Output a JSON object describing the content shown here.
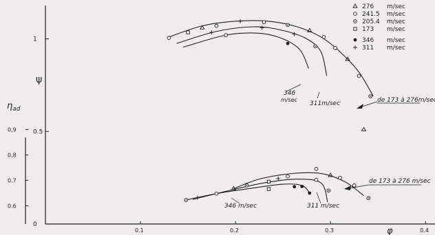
{
  "chart_data": {
    "type": "scatter",
    "title": "",
    "xlabel": "φ",
    "ylabel_psi": "ψ",
    "ylabel_eta": "η_ad",
    "xlim": [
      0,
      0.41
    ],
    "ylim": [
      0,
      1.18
    ],
    "x_ticks": [
      {
        "value": 0.1,
        "label": "0.1"
      },
      {
        "value": 0.2,
        "label": "0.2"
      },
      {
        "value": 0.3,
        "label": "0.3"
      },
      {
        "value": 0.4,
        "label": "0.4"
      }
    ],
    "y_ticks_psi": [
      {
        "value": 0,
        "label": "0"
      },
      {
        "value": 0.5,
        "label": "0.5"
      },
      {
        "value": 1.0,
        "label": "1"
      }
    ],
    "y_ticks_eta": [
      {
        "value": 0.6,
        "label": "0.6"
      },
      {
        "value": 0.7,
        "label": "0.7"
      },
      {
        "value": 0.8,
        "label": "0,8"
      },
      {
        "value": 0.9,
        "label": "0,9"
      }
    ],
    "legend": [
      {
        "marker": "triangle",
        "speed": "276",
        "unit": "m/sec"
      },
      {
        "marker": "circle",
        "speed": "241.5",
        "unit": "m/sec"
      },
      {
        "marker": "dotcircle",
        "speed": "205.4",
        "unit": "m/sec"
      },
      {
        "marker": "square",
        "speed": "173",
        "unit": "m/sec"
      },
      {
        "marker": "filled",
        "speed": "346",
        "unit": "m/sec"
      },
      {
        "marker": "plus",
        "speed": "311",
        "unit": "m/sec"
      }
    ],
    "series": [
      {
        "name": "ψ 173 à 276 m/sec",
        "curve": [
          [
            0.13,
            1.01
          ],
          [
            0.165,
            1.07
          ],
          [
            0.2,
            1.095
          ],
          [
            0.235,
            1.095
          ],
          [
            0.265,
            1.065
          ],
          [
            0.29,
            1.01
          ],
          [
            0.31,
            0.93
          ],
          [
            0.33,
            0.82
          ],
          [
            0.345,
            0.69
          ]
        ],
        "points": [
          {
            "m": "circle",
            "x": 0.13,
            "y": 1.005
          },
          {
            "m": "square",
            "x": 0.15,
            "y": 1.035
          },
          {
            "m": "triangle",
            "x": 0.165,
            "y": 1.06
          },
          {
            "m": "circle",
            "x": 0.18,
            "y": 1.07
          },
          {
            "m": "plus",
            "x": 0.205,
            "y": 1.095
          },
          {
            "m": "circle",
            "x": 0.23,
            "y": 1.09
          },
          {
            "m": "dotcircle",
            "x": 0.255,
            "y": 1.075
          },
          {
            "m": "triangle",
            "x": 0.278,
            "y": 1.045
          },
          {
            "m": "circle",
            "x": 0.293,
            "y": 1.01
          },
          {
            "m": "circle",
            "x": 0.305,
            "y": 0.95
          },
          {
            "m": "triangle",
            "x": 0.318,
            "y": 0.89
          },
          {
            "m": "circle",
            "x": 0.33,
            "y": 0.8
          },
          {
            "m": "dotcircle",
            "x": 0.342,
            "y": 0.69
          },
          {
            "m": "triangle",
            "x": 0.335,
            "y": 0.51
          }
        ]
      },
      {
        "name": "ψ 311 m/sec",
        "curve": [
          [
            0.138,
            0.975
          ],
          [
            0.18,
            1.04
          ],
          [
            0.22,
            1.065
          ],
          [
            0.25,
            1.045
          ],
          [
            0.275,
            1.0
          ],
          [
            0.29,
            0.93
          ],
          [
            0.296,
            0.8
          ]
        ],
        "points": [
          {
            "m": "plus",
            "x": 0.175,
            "y": 1.035
          },
          {
            "m": "plus",
            "x": 0.228,
            "y": 1.06
          },
          {
            "m": "plus",
            "x": 0.262,
            "y": 1.025
          },
          {
            "m": "dotcircle",
            "x": 0.284,
            "y": 0.96
          }
        ]
      },
      {
        "name": "ψ 346 m/sec",
        "curve": [
          [
            0.145,
            0.955
          ],
          [
            0.19,
            1.02
          ],
          [
            0.225,
            1.03
          ],
          [
            0.25,
            1.0
          ],
          [
            0.268,
            0.94
          ],
          [
            0.277,
            0.84
          ]
        ],
        "points": [
          {
            "m": "circle",
            "x": 0.19,
            "y": 1.02
          },
          {
            "m": "filled",
            "x": 0.255,
            "y": 0.975
          }
        ]
      },
      {
        "name": "η_ad 173 à 276 m/sec",
        "curve": [
          [
            0.198,
            0.667
          ],
          [
            0.225,
            0.705
          ],
          [
            0.26,
            0.727
          ],
          [
            0.29,
            0.727
          ],
          [
            0.315,
            0.695
          ],
          [
            0.335,
            0.64
          ]
        ],
        "points": [
          {
            "m": "triangle",
            "x": 0.198,
            "y": 0.668
          },
          {
            "m": "dotcircle",
            "x": 0.212,
            "y": 0.68
          },
          {
            "m": "square",
            "x": 0.235,
            "y": 0.695
          },
          {
            "m": "circle",
            "x": 0.255,
            "y": 0.716
          },
          {
            "m": "circle",
            "x": 0.285,
            "y": 0.745
          },
          {
            "m": "triangle",
            "x": 0.3,
            "y": 0.72
          },
          {
            "m": "circle",
            "x": 0.31,
            "y": 0.71
          },
          {
            "m": "circle",
            "x": 0.325,
            "y": 0.68
          },
          {
            "m": "dotcircle",
            "x": 0.34,
            "y": 0.63
          }
        ]
      },
      {
        "name": "η_ad 311 m/sec",
        "curve": [
          [
            0.155,
            0.625
          ],
          [
            0.19,
            0.657
          ],
          [
            0.23,
            0.69
          ],
          [
            0.265,
            0.705
          ],
          [
            0.29,
            0.69
          ],
          [
            0.297,
            0.615
          ]
        ],
        "points": [
          {
            "m": "plus",
            "x": 0.16,
            "y": 0.632
          },
          {
            "m": "plus",
            "x": 0.245,
            "y": 0.707
          },
          {
            "m": "circle",
            "x": 0.285,
            "y": 0.702
          },
          {
            "m": "dotcircle",
            "x": 0.298,
            "y": 0.66
          }
        ]
      },
      {
        "name": "η_ad 346 m/sec",
        "curve": [
          [
            0.148,
            0.623
          ],
          [
            0.18,
            0.648
          ],
          [
            0.215,
            0.668
          ],
          [
            0.25,
            0.685
          ],
          [
            0.27,
            0.68
          ],
          [
            0.278,
            0.65
          ]
        ],
        "points": [
          {
            "m": "dotcircle",
            "x": 0.148,
            "y": 0.623
          },
          {
            "m": "circle",
            "x": 0.18,
            "y": 0.648
          },
          {
            "m": "square",
            "x": 0.235,
            "y": 0.666
          },
          {
            "m": "filled",
            "x": 0.262,
            "y": 0.675
          },
          {
            "m": "filled",
            "x": 0.27,
            "y": 0.676
          },
          {
            "m": "filled",
            "x": 0.278,
            "y": 0.65
          }
        ]
      }
    ],
    "annotations": [
      {
        "id": "psi-346",
        "text": "346",
        "sub": "m/sec"
      },
      {
        "id": "psi-311",
        "text": "311m/sec"
      },
      {
        "id": "psi-range",
        "text": "de 173 à 276m/sec"
      },
      {
        "id": "eta-346",
        "text": "346 m/sec"
      },
      {
        "id": "eta-311",
        "text": "311 m/sec"
      },
      {
        "id": "eta-range",
        "text": "de 173 à 276 m/sec"
      }
    ]
  }
}
